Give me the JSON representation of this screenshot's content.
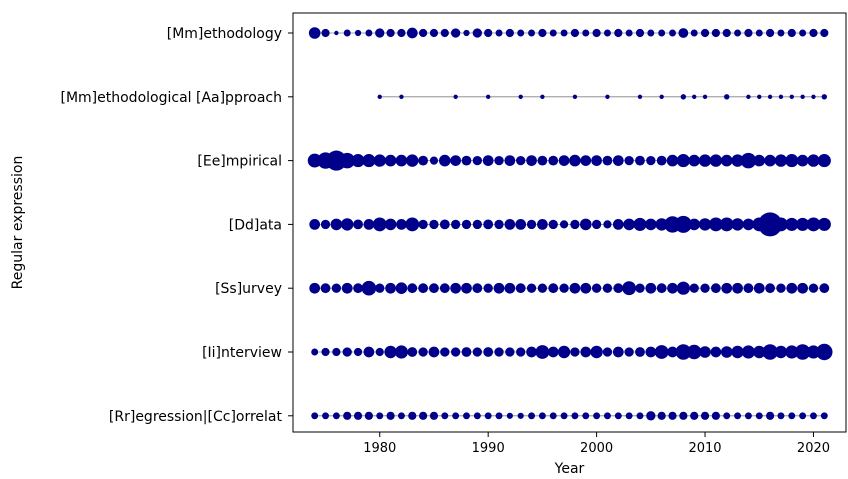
{
  "chart_data": {
    "type": "scatter",
    "title": "",
    "xlabel": "Year",
    "ylabel": "Regular expression",
    "xlim": [
      1972,
      2023
    ],
    "xticks": [
      1980,
      1990,
      2000,
      2010,
      2020
    ],
    "grid": false,
    "point_color": "#00008b",
    "line_color": "#808080",
    "size_unit": "relative frequency (0-1)",
    "categories": [
      "[Mm]ethodology",
      "[Mm]ethodological [Aa]pproach",
      "[Ee]mpirical",
      "[Dd]ata",
      "[Ss]urvey",
      "[Ii]nterview",
      "[Rr]egression|[Cc]orrelat"
    ],
    "series": [
      {
        "category": "[Mm]ethodology",
        "x": [
          1974,
          1975,
          1976,
          1977,
          1978,
          1979,
          1980,
          1981,
          1982,
          1983,
          1984,
          1985,
          1986,
          1987,
          1988,
          1989,
          1990,
          1991,
          1992,
          1993,
          1994,
          1995,
          1996,
          1997,
          1998,
          1999,
          2000,
          2001,
          2002,
          2003,
          2004,
          2005,
          2006,
          2007,
          2008,
          2009,
          2010,
          2011,
          2012,
          2013,
          2014,
          2015,
          2016,
          2017,
          2018,
          2019,
          2020,
          2021
        ],
        "sizes": [
          0.14,
          0.07,
          0.02,
          0.05,
          0.04,
          0.05,
          0.09,
          0.07,
          0.07,
          0.12,
          0.07,
          0.07,
          0.07,
          0.09,
          0.04,
          0.09,
          0.07,
          0.05,
          0.07,
          0.05,
          0.05,
          0.07,
          0.05,
          0.05,
          0.07,
          0.05,
          0.07,
          0.05,
          0.07,
          0.05,
          0.07,
          0.05,
          0.05,
          0.05,
          0.1,
          0.05,
          0.07,
          0.07,
          0.07,
          0.05,
          0.07,
          0.05,
          0.07,
          0.05,
          0.07,
          0.05,
          0.07,
          0.07
        ]
      },
      {
        "category": "[Mm]ethodological [Aa]pproach",
        "x": [
          1980,
          1982,
          1987,
          1990,
          1993,
          1995,
          1998,
          2001,
          2004,
          2006,
          2008,
          2009,
          2010,
          2012,
          2014,
          2015,
          2016,
          2017,
          2018,
          2019,
          2020,
          2021
        ],
        "sizes": [
          0.02,
          0.02,
          0.02,
          0.02,
          0.02,
          0.02,
          0.02,
          0.02,
          0.02,
          0.02,
          0.03,
          0.02,
          0.02,
          0.03,
          0.02,
          0.02,
          0.02,
          0.02,
          0.02,
          0.02,
          0.02,
          0.03
        ]
      },
      {
        "category": "[Ee]mpirical",
        "x": [
          1974,
          1975,
          1976,
          1977,
          1978,
          1979,
          1980,
          1981,
          1982,
          1983,
          1984,
          1985,
          1986,
          1987,
          1988,
          1989,
          1990,
          1991,
          1992,
          1993,
          1994,
          1995,
          1996,
          1997,
          1998,
          1999,
          2000,
          2001,
          2002,
          2003,
          2004,
          2005,
          2006,
          2007,
          2008,
          2009,
          2010,
          2011,
          2012,
          2013,
          2014,
          2015,
          2016,
          2017,
          2018,
          2019,
          2020,
          2021
        ],
        "sizes": [
          0.2,
          0.28,
          0.42,
          0.25,
          0.18,
          0.18,
          0.16,
          0.14,
          0.14,
          0.16,
          0.1,
          0.07,
          0.14,
          0.12,
          0.1,
          0.09,
          0.12,
          0.09,
          0.12,
          0.09,
          0.12,
          0.1,
          0.1,
          0.12,
          0.14,
          0.12,
          0.12,
          0.1,
          0.12,
          0.09,
          0.1,
          0.09,
          0.1,
          0.14,
          0.18,
          0.14,
          0.16,
          0.16,
          0.14,
          0.16,
          0.25,
          0.14,
          0.14,
          0.16,
          0.18,
          0.14,
          0.16,
          0.18
        ]
      },
      {
        "category": "[Dd]ata",
        "x": [
          1974,
          1975,
          1976,
          1977,
          1978,
          1979,
          1980,
          1981,
          1982,
          1983,
          1984,
          1985,
          1986,
          1987,
          1988,
          1989,
          1990,
          1991,
          1992,
          1993,
          1994,
          1995,
          1996,
          1997,
          1998,
          1999,
          2000,
          2001,
          2002,
          2003,
          2004,
          2005,
          2006,
          2007,
          2008,
          2009,
          2010,
          2011,
          2012,
          2013,
          2014,
          2015,
          2016,
          2017,
          2018,
          2019,
          2020,
          2021
        ],
        "sizes": [
          0.12,
          0.09,
          0.14,
          0.16,
          0.1,
          0.12,
          0.2,
          0.14,
          0.12,
          0.2,
          0.09,
          0.09,
          0.1,
          0.09,
          0.09,
          0.09,
          0.1,
          0.09,
          0.12,
          0.12,
          0.09,
          0.12,
          0.09,
          0.07,
          0.09,
          0.14,
          0.09,
          0.07,
          0.12,
          0.14,
          0.18,
          0.14,
          0.16,
          0.28,
          0.3,
          0.14,
          0.16,
          0.2,
          0.2,
          0.16,
          0.14,
          0.2,
          0.6,
          0.2,
          0.18,
          0.18,
          0.2,
          0.18
        ]
      },
      {
        "category": "[Ss]urvey",
        "x": [
          1974,
          1975,
          1976,
          1977,
          1978,
          1979,
          1980,
          1981,
          1982,
          1983,
          1984,
          1985,
          1986,
          1987,
          1988,
          1989,
          1990,
          1991,
          1992,
          1993,
          1994,
          1995,
          1996,
          1997,
          1998,
          1999,
          2000,
          2001,
          2002,
          2003,
          2004,
          2005,
          2006,
          2007,
          2008,
          2009,
          2010,
          2011,
          2012,
          2013,
          2014,
          2015,
          2016,
          2017,
          2018,
          2019,
          2020,
          2021
        ],
        "sizes": [
          0.12,
          0.1,
          0.09,
          0.12,
          0.1,
          0.22,
          0.09,
          0.12,
          0.14,
          0.1,
          0.1,
          0.1,
          0.1,
          0.12,
          0.12,
          0.1,
          0.09,
          0.12,
          0.12,
          0.1,
          0.09,
          0.09,
          0.1,
          0.09,
          0.12,
          0.12,
          0.09,
          0.09,
          0.1,
          0.2,
          0.09,
          0.12,
          0.1,
          0.12,
          0.18,
          0.09,
          0.09,
          0.1,
          0.12,
          0.12,
          0.1,
          0.12,
          0.1,
          0.09,
          0.12,
          0.12,
          0.09,
          0.1
        ]
      },
      {
        "category": "[Ii]nterview",
        "x": [
          1974,
          1975,
          1976,
          1977,
          1978,
          1979,
          1980,
          1981,
          1982,
          1983,
          1984,
          1985,
          1986,
          1987,
          1988,
          1989,
          1990,
          1991,
          1992,
          1993,
          1994,
          1995,
          1996,
          1997,
          1998,
          1999,
          2000,
          2001,
          2002,
          2003,
          2004,
          2005,
          2006,
          2007,
          2008,
          2009,
          2010,
          2011,
          2012,
          2013,
          2014,
          2015,
          2016,
          2017,
          2018,
          2019,
          2020,
          2021
        ],
        "sizes": [
          0.05,
          0.07,
          0.07,
          0.09,
          0.07,
          0.12,
          0.07,
          0.16,
          0.18,
          0.1,
          0.09,
          0.12,
          0.09,
          0.09,
          0.1,
          0.09,
          0.1,
          0.09,
          0.09,
          0.09,
          0.12,
          0.2,
          0.12,
          0.16,
          0.09,
          0.12,
          0.16,
          0.09,
          0.12,
          0.09,
          0.1,
          0.12,
          0.2,
          0.12,
          0.25,
          0.22,
          0.14,
          0.12,
          0.14,
          0.16,
          0.18,
          0.16,
          0.25,
          0.16,
          0.18,
          0.25,
          0.18,
          0.28
        ]
      },
      {
        "category": "[Rr]egression|[Cc]orrelat",
        "x": [
          1974,
          1975,
          1976,
          1977,
          1978,
          1979,
          1980,
          1981,
          1982,
          1983,
          1984,
          1985,
          1986,
          1987,
          1988,
          1989,
          1990,
          1991,
          1992,
          1993,
          1994,
          1995,
          1996,
          1997,
          1998,
          1999,
          2000,
          2001,
          2002,
          2003,
          2004,
          2005,
          2006,
          2007,
          2008,
          2009,
          2010,
          2011,
          2012,
          2013,
          2014,
          2015,
          2016,
          2017,
          2018,
          2019,
          2020,
          2021
        ],
        "sizes": [
          0.05,
          0.05,
          0.05,
          0.07,
          0.07,
          0.07,
          0.05,
          0.07,
          0.05,
          0.07,
          0.07,
          0.07,
          0.05,
          0.05,
          0.05,
          0.05,
          0.05,
          0.05,
          0.04,
          0.04,
          0.05,
          0.05,
          0.05,
          0.05,
          0.05,
          0.05,
          0.05,
          0.05,
          0.05,
          0.05,
          0.05,
          0.09,
          0.07,
          0.07,
          0.07,
          0.07,
          0.07,
          0.07,
          0.05,
          0.05,
          0.05,
          0.05,
          0.07,
          0.05,
          0.05,
          0.05,
          0.05,
          0.05
        ]
      }
    ]
  }
}
